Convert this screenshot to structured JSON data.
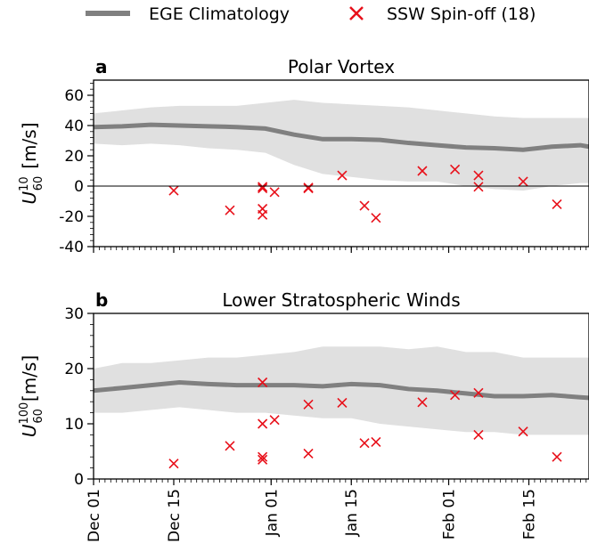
{
  "legend": {
    "corner": "top"
  },
  "chart_data": [
    {
      "type": "line",
      "panel_label": "a",
      "title": "Polar Vortex",
      "y_label": {
        "symbol": "U",
        "subscript": "60",
        "superscript": "10",
        "unit": "[m/s]"
      },
      "x": [
        0,
        5,
        10,
        15,
        20,
        25,
        30,
        35,
        40,
        45,
        50,
        55,
        60,
        65,
        70,
        75,
        80,
        85,
        86.5
      ],
      "xlim": [
        0,
        86.5
      ],
      "xticks": [
        0,
        14,
        31,
        45,
        62,
        76
      ],
      "ylim": [
        -40,
        70
      ],
      "yticks": [
        -40,
        -20,
        0,
        20,
        40,
        60
      ],
      "hline": 0,
      "series": [
        {
          "name": "EGE Climatology",
          "color": "#808080",
          "band_color": "#e0e0e0",
          "values": [
            39,
            39.5,
            40.5,
            40,
            39.5,
            39,
            38,
            34,
            31,
            31,
            30.5,
            28.5,
            27,
            25.5,
            25,
            24,
            26,
            27,
            26
          ],
          "band_upper": [
            48,
            50,
            52,
            53,
            53,
            53,
            55,
            57,
            55,
            54,
            53,
            52,
            50,
            48,
            46,
            45,
            45,
            45,
            45
          ],
          "band_lower": [
            28,
            27,
            28,
            27,
            25,
            24,
            22,
            14,
            8,
            6,
            4,
            3,
            3,
            0,
            -2,
            -3,
            0,
            2,
            2
          ]
        },
        {
          "name": "SSW Spin-off (18)",
          "type": "scatter",
          "color": "#e8101a",
          "x": [
            14,
            23.8,
            29.5,
            29.5,
            29.5,
            29.5,
            31.6,
            37.5,
            37.5,
            43.4,
            47.3,
            49.3,
            57.4,
            63.1,
            67.2,
            67.2,
            75,
            80.9
          ],
          "values": [
            -3,
            -16,
            -0.5,
            -1.5,
            -15,
            -19,
            -4,
            -1,
            -1.5,
            7,
            -13,
            -21,
            10,
            11,
            7,
            -0.5,
            3,
            -12
          ]
        }
      ]
    },
    {
      "type": "line",
      "panel_label": "b",
      "title": "Lower Stratospheric Winds",
      "y_label": {
        "symbol": "U",
        "subscript": "60",
        "superscript": "100",
        "unit": "[m/s]"
      },
      "x": [
        0,
        5,
        10,
        15,
        20,
        25,
        30,
        35,
        40,
        45,
        50,
        55,
        60,
        65,
        70,
        75,
        80,
        85,
        86.5
      ],
      "xlim": [
        0,
        86.5
      ],
      "xticks": [
        {
          "value": 0,
          "label": "Dec 01"
        },
        {
          "value": 14,
          "label": "Dec 15"
        },
        {
          "value": 31,
          "label": "Jan 01"
        },
        {
          "value": 45,
          "label": "Jan 15"
        },
        {
          "value": 62,
          "label": "Feb 01"
        },
        {
          "value": 76,
          "label": "Feb 15"
        }
      ],
      "ylim": [
        0,
        30
      ],
      "yticks": [
        0,
        10,
        20,
        30
      ],
      "series": [
        {
          "color": "#808080",
          "band_color": "#e0e0e0",
          "values": [
            16,
            16.5,
            17,
            17.5,
            17.2,
            17,
            17,
            17,
            16.8,
            17.2,
            17,
            16.3,
            16,
            15.5,
            15,
            15,
            15.2,
            14.8,
            14.7
          ],
          "band_upper": [
            20,
            21,
            21,
            21.5,
            22,
            22,
            22.5,
            23,
            24,
            24,
            24,
            23.5,
            24,
            23,
            23,
            22,
            22,
            22,
            22
          ],
          "band_lower": [
            12,
            12,
            12.5,
            13,
            12.5,
            12,
            12,
            11.5,
            11,
            11,
            10,
            9.5,
            9,
            8.5,
            8.5,
            8,
            8,
            8,
            8
          ]
        },
        {
          "type": "scatter",
          "color": "#e8101a",
          "x": [
            14,
            23.8,
            29.5,
            29.5,
            29.5,
            29.5,
            31.6,
            37.5,
            37.5,
            43.4,
            47.3,
            49.3,
            57.4,
            63.1,
            67.2,
            67.2,
            75,
            80.9
          ],
          "values": [
            2.8,
            6,
            17.5,
            10,
            4,
            3.5,
            10.7,
            13.5,
            4.6,
            13.8,
            6.5,
            6.7,
            13.9,
            15.2,
            15.6,
            8,
            8.6,
            4
          ]
        }
      ]
    }
  ]
}
